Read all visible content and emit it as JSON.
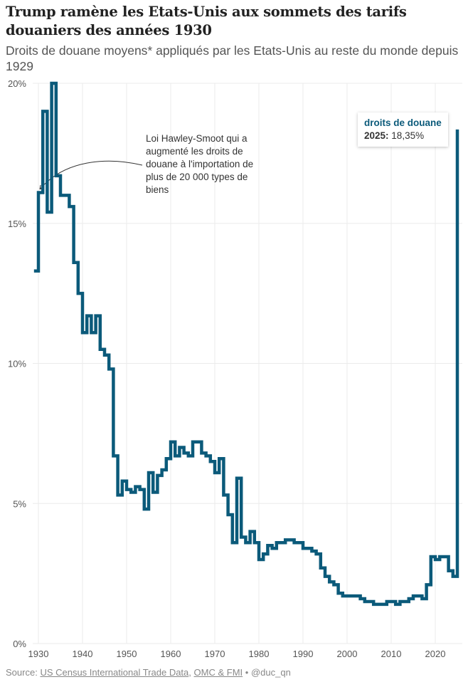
{
  "title": "Trump ramène les Etats-Unis aux sommets des tarifs douaniers des années 1930",
  "subtitle": "Droits de douane moyens* appliqués par les Etats-Unis au reste du monde depuis 1929",
  "source": {
    "label": "Source:",
    "link1": "US Census International Trade Data",
    "sep": ",",
    "link2": "OMC & FMI",
    "bullet": "•",
    "author": "@duc_qn"
  },
  "annotation": "Loi Hawley-Smoot qui a augmenté les droits de douane à l'importation de plus de 20 000 types de biens",
  "tooltip": {
    "title": "droits de douane",
    "year": "2025:",
    "value": "18,35%"
  },
  "colors": {
    "line": "#0b5a7a",
    "grid": "#ebebeb"
  },
  "chart_data": {
    "type": "line",
    "step": true,
    "title": "Trump ramène les Etats-Unis aux sommets des tarifs douaniers des années 1930",
    "xlabel": "",
    "ylabel": "",
    "xlim": [
      1929,
      2025
    ],
    "ylim": [
      0,
      20
    ],
    "x_ticks": [
      "1930",
      "1940",
      "1950",
      "1960",
      "1970",
      "1980",
      "1990",
      "2000",
      "2010",
      "2020"
    ],
    "y_ticks": [
      "0%",
      "5%",
      "10%",
      "15%",
      "20%"
    ],
    "series": [
      {
        "name": "droits de douane",
        "x": [
          1929,
          1930,
          1931,
          1932,
          1933,
          1934,
          1935,
          1936,
          1937,
          1938,
          1939,
          1940,
          1941,
          1942,
          1943,
          1944,
          1945,
          1946,
          1947,
          1948,
          1949,
          1950,
          1951,
          1952,
          1953,
          1954,
          1955,
          1956,
          1957,
          1958,
          1959,
          1960,
          1961,
          1962,
          1963,
          1964,
          1965,
          1966,
          1967,
          1968,
          1969,
          1970,
          1971,
          1972,
          1973,
          1974,
          1975,
          1976,
          1977,
          1978,
          1979,
          1980,
          1981,
          1982,
          1983,
          1984,
          1985,
          1986,
          1987,
          1988,
          1989,
          1990,
          1991,
          1992,
          1993,
          1994,
          1995,
          1996,
          1997,
          1998,
          1999,
          2000,
          2001,
          2002,
          2003,
          2004,
          2005,
          2006,
          2007,
          2008,
          2009,
          2010,
          2011,
          2012,
          2013,
          2014,
          2015,
          2016,
          2017,
          2018,
          2019,
          2020,
          2021,
          2022,
          2023,
          2024,
          2025
        ],
        "values": [
          13.3,
          16.1,
          19.0,
          15.4,
          20.0,
          16.7,
          16.0,
          16.0,
          15.6,
          13.6,
          12.5,
          11.1,
          11.7,
          11.1,
          11.7,
          10.5,
          10.3,
          9.8,
          6.7,
          5.3,
          5.8,
          5.5,
          5.4,
          5.6,
          5.5,
          4.8,
          6.1,
          5.4,
          6.0,
          6.2,
          6.6,
          7.2,
          6.7,
          7.0,
          6.8,
          6.7,
          7.2,
          7.2,
          6.8,
          6.7,
          6.5,
          6.1,
          6.6,
          5.3,
          4.6,
          3.6,
          5.9,
          3.8,
          3.6,
          4.0,
          3.6,
          3.0,
          3.2,
          3.5,
          3.4,
          3.6,
          3.6,
          3.7,
          3.7,
          3.6,
          3.6,
          3.4,
          3.4,
          3.3,
          3.2,
          2.7,
          2.4,
          2.2,
          2.1,
          1.8,
          1.7,
          1.7,
          1.7,
          1.7,
          1.6,
          1.5,
          1.5,
          1.4,
          1.4,
          1.4,
          1.5,
          1.5,
          1.4,
          1.5,
          1.5,
          1.6,
          1.7,
          1.7,
          1.6,
          2.1,
          3.1,
          3.0,
          3.1,
          3.1,
          2.6,
          2.4,
          18.35
        ]
      }
    ],
    "grid": true,
    "legend": "none"
  }
}
